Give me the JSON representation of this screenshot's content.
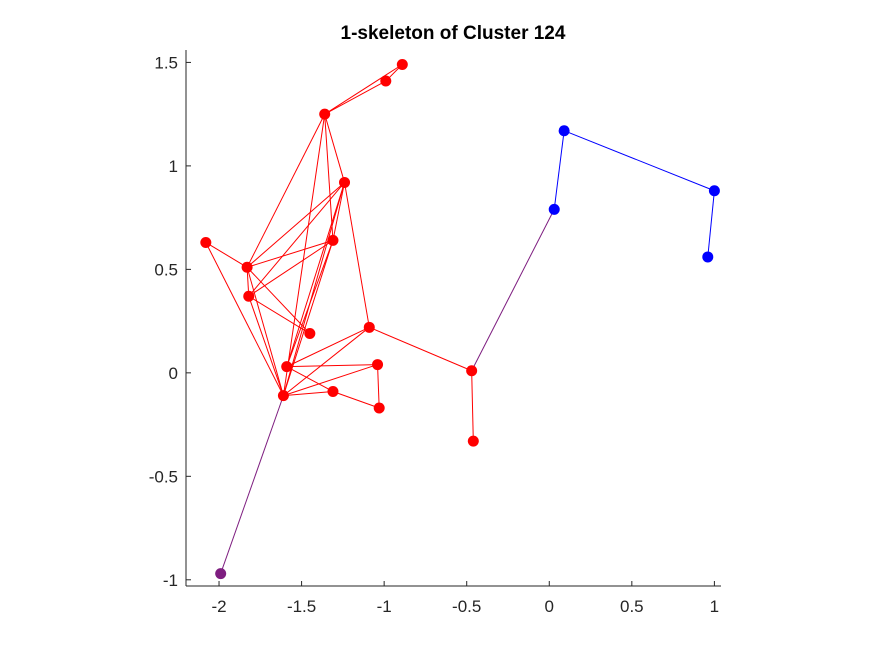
{
  "chart_data": {
    "type": "scatter",
    "title": "1-skeleton of Cluster 124",
    "xlabel": "",
    "ylabel": "",
    "xlim": [
      -2.2,
      1.04
    ],
    "ylim": [
      -1.03,
      1.56
    ],
    "grid": false,
    "x_ticks": [
      -2,
      -1.5,
      -1,
      -0.5,
      0,
      0.5,
      1
    ],
    "y_ticks": [
      -1,
      -0.5,
      0,
      0.5,
      1,
      1.5
    ],
    "x_tick_labels": [
      "-2",
      "-1.5",
      "-1",
      "-0.5",
      "0",
      "0.5",
      "1"
    ],
    "y_tick_labels": [
      "-1",
      "-0.5",
      "0",
      "0.5",
      "1",
      "1.5"
    ],
    "colors": {
      "red": "#ff0000",
      "blue": "#0000ff",
      "purple": "#7e1e80",
      "axis": "#262626"
    },
    "nodes": [
      {
        "id": 0,
        "x": -0.89,
        "y": 1.49,
        "group": "red"
      },
      {
        "id": 1,
        "x": -0.99,
        "y": 1.41,
        "group": "red"
      },
      {
        "id": 2,
        "x": -1.36,
        "y": 1.25,
        "group": "red"
      },
      {
        "id": 3,
        "x": -1.24,
        "y": 0.92,
        "group": "red"
      },
      {
        "id": 4,
        "x": -2.08,
        "y": 0.63,
        "group": "red"
      },
      {
        "id": 5,
        "x": -1.31,
        "y": 0.64,
        "group": "red"
      },
      {
        "id": 6,
        "x": -1.83,
        "y": 0.51,
        "group": "red"
      },
      {
        "id": 7,
        "x": -1.82,
        "y": 0.37,
        "group": "red"
      },
      {
        "id": 8,
        "x": -1.45,
        "y": 0.19,
        "group": "red"
      },
      {
        "id": 9,
        "x": -1.09,
        "y": 0.22,
        "group": "red"
      },
      {
        "id": 10,
        "x": -1.59,
        "y": 0.03,
        "group": "red"
      },
      {
        "id": 11,
        "x": -1.04,
        "y": 0.04,
        "group": "red"
      },
      {
        "id": 12,
        "x": -0.47,
        "y": 0.01,
        "group": "red"
      },
      {
        "id": 13,
        "x": -1.61,
        "y": -0.11,
        "group": "red"
      },
      {
        "id": 14,
        "x": -1.31,
        "y": -0.09,
        "group": "red"
      },
      {
        "id": 15,
        "x": -1.03,
        "y": -0.17,
        "group": "red"
      },
      {
        "id": 16,
        "x": -0.46,
        "y": -0.33,
        "group": "red"
      },
      {
        "id": 17,
        "x": 0.03,
        "y": 0.79,
        "group": "blue"
      },
      {
        "id": 18,
        "x": 0.09,
        "y": 1.17,
        "group": "blue"
      },
      {
        "id": 19,
        "x": 1.0,
        "y": 0.88,
        "group": "blue"
      },
      {
        "id": 20,
        "x": 0.96,
        "y": 0.56,
        "group": "blue"
      },
      {
        "id": 21,
        "x": -1.99,
        "y": -0.97,
        "group": "purple"
      }
    ],
    "edges": [
      {
        "from": 0,
        "to": 1,
        "color": "red"
      },
      {
        "from": 0,
        "to": 2,
        "color": "red"
      },
      {
        "from": 1,
        "to": 2,
        "color": "red"
      },
      {
        "from": 2,
        "to": 6,
        "color": "red"
      },
      {
        "from": 2,
        "to": 3,
        "color": "red"
      },
      {
        "from": 2,
        "to": 5,
        "color": "red"
      },
      {
        "from": 2,
        "to": 13,
        "color": "red"
      },
      {
        "from": 3,
        "to": 6,
        "color": "red"
      },
      {
        "from": 3,
        "to": 7,
        "color": "red"
      },
      {
        "from": 3,
        "to": 5,
        "color": "red"
      },
      {
        "from": 3,
        "to": 9,
        "color": "red"
      },
      {
        "from": 3,
        "to": 13,
        "color": "red"
      },
      {
        "from": 3,
        "to": 10,
        "color": "red"
      },
      {
        "from": 4,
        "to": 6,
        "color": "red"
      },
      {
        "from": 4,
        "to": 13,
        "color": "red"
      },
      {
        "from": 5,
        "to": 6,
        "color": "red"
      },
      {
        "from": 5,
        "to": 7,
        "color": "red"
      },
      {
        "from": 5,
        "to": 13,
        "color": "red"
      },
      {
        "from": 5,
        "to": 10,
        "color": "red"
      },
      {
        "from": 6,
        "to": 7,
        "color": "red"
      },
      {
        "from": 6,
        "to": 8,
        "color": "red"
      },
      {
        "from": 6,
        "to": 13,
        "color": "red"
      },
      {
        "from": 7,
        "to": 8,
        "color": "red"
      },
      {
        "from": 7,
        "to": 13,
        "color": "red"
      },
      {
        "from": 9,
        "to": 10,
        "color": "red"
      },
      {
        "from": 9,
        "to": 12,
        "color": "red"
      },
      {
        "from": 9,
        "to": 13,
        "color": "red"
      },
      {
        "from": 10,
        "to": 11,
        "color": "red"
      },
      {
        "from": 10,
        "to": 14,
        "color": "red"
      },
      {
        "from": 11,
        "to": 13,
        "color": "red"
      },
      {
        "from": 11,
        "to": 15,
        "color": "red"
      },
      {
        "from": 13,
        "to": 14,
        "color": "red"
      },
      {
        "from": 14,
        "to": 15,
        "color": "red"
      },
      {
        "from": 12,
        "to": 16,
        "color": "red"
      },
      {
        "from": 12,
        "to": 17,
        "color": "purple"
      },
      {
        "from": 13,
        "to": 21,
        "color": "purple"
      },
      {
        "from": 17,
        "to": 18,
        "color": "blue"
      },
      {
        "from": 18,
        "to": 19,
        "color": "blue"
      },
      {
        "from": 19,
        "to": 20,
        "color": "blue"
      }
    ]
  }
}
